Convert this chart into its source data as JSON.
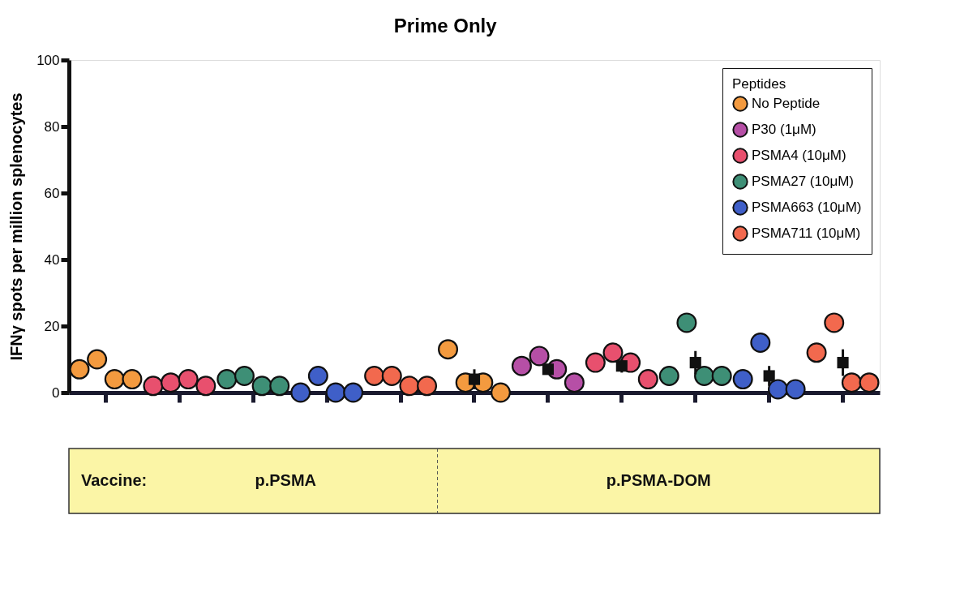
{
  "chart_data": {
    "type": "scatter",
    "title": "Prime Only",
    "ylabel": "IFNγ spots per million splenocytes",
    "legend_title": "Peptides",
    "legend": "top right",
    "grid": false,
    "marker": "circle",
    "tick_labels": "y",
    "categories": [
      null,
      null,
      null,
      null,
      null,
      null,
      null,
      null,
      null,
      null,
      null
    ],
    "ylim": [
      0,
      100
    ],
    "yticks": [
      0,
      20,
      40,
      60,
      80,
      100
    ],
    "series": [
      {
        "name": "No Peptide",
        "color": "#f39a3f",
        "values": [
          7,
          null,
          null,
          null,
          null,
          13,
          null,
          null,
          null,
          null,
          null
        ]
      },
      {
        "color": "#f39a3f",
        "values": [
          10,
          null,
          null,
          null,
          null,
          3,
          null,
          null,
          null,
          null,
          null
        ]
      },
      {
        "color": "#f39a3f",
        "values": [
          4,
          null,
          null,
          null,
          null,
          3,
          null,
          null,
          null,
          null,
          null
        ]
      },
      {
        "color": "#f39a3f",
        "values": [
          4,
          null,
          null,
          null,
          null,
          0,
          null,
          null,
          null,
          null,
          null
        ]
      },
      {
        "name": "P30 (1μM)",
        "color": "#b64fa6",
        "values": [
          null,
          null,
          null,
          null,
          null,
          null,
          8,
          null,
          null,
          null,
          null
        ]
      },
      {
        "color": "#b64fa6",
        "values": [
          null,
          null,
          null,
          null,
          null,
          null,
          11,
          null,
          null,
          null,
          null
        ]
      },
      {
        "color": "#b64fa6",
        "values": [
          null,
          null,
          null,
          null,
          null,
          null,
          7,
          null,
          null,
          null,
          null
        ]
      },
      {
        "color": "#b64fa6",
        "values": [
          null,
          null,
          null,
          null,
          null,
          null,
          3,
          null,
          null,
          null,
          null
        ]
      },
      {
        "name": "PSMA4 (10μM)",
        "color": "#e8506e",
        "values": [
          null,
          2,
          null,
          null,
          null,
          null,
          null,
          9,
          null,
          null,
          null
        ]
      },
      {
        "color": "#e8506e",
        "values": [
          null,
          3,
          null,
          null,
          null,
          null,
          null,
          12,
          null,
          null,
          null
        ]
      },
      {
        "color": "#e8506e",
        "values": [
          null,
          4,
          null,
          null,
          null,
          null,
          null,
          9,
          null,
          null,
          null
        ]
      },
      {
        "color": "#e8506e",
        "values": [
          null,
          2,
          null,
          null,
          null,
          null,
          null,
          4,
          null,
          null,
          null
        ]
      },
      {
        "name": "PSMA27 (10μM)",
        "color": "#3e8f76",
        "values": [
          null,
          null,
          4,
          null,
          null,
          null,
          null,
          null,
          5,
          null,
          null
        ]
      },
      {
        "color": "#3e8f76",
        "values": [
          null,
          null,
          5,
          null,
          null,
          null,
          null,
          null,
          21,
          null,
          null
        ]
      },
      {
        "color": "#3e8f76",
        "values": [
          null,
          null,
          2,
          null,
          null,
          null,
          null,
          null,
          5,
          null,
          null
        ]
      },
      {
        "color": "#3e8f76",
        "values": [
          null,
          null,
          2,
          null,
          null,
          null,
          null,
          null,
          5,
          null,
          null
        ]
      },
      {
        "name": "PSMA663 (10μM)",
        "color": "#3f5fc8",
        "values": [
          null,
          null,
          null,
          0,
          null,
          null,
          null,
          null,
          null,
          4,
          null
        ]
      },
      {
        "color": "#3f5fc8",
        "values": [
          null,
          null,
          null,
          5,
          null,
          null,
          null,
          null,
          null,
          15,
          null
        ]
      },
      {
        "color": "#3f5fc8",
        "values": [
          null,
          null,
          null,
          0,
          null,
          null,
          null,
          null,
          null,
          1,
          null
        ]
      },
      {
        "color": "#3f5fc8",
        "values": [
          null,
          null,
          null,
          0,
          null,
          null,
          null,
          null,
          null,
          1,
          null
        ]
      },
      {
        "name": "PSMA711 (10μM)",
        "color": "#f2694e",
        "values": [
          null,
          null,
          null,
          null,
          5,
          null,
          null,
          null,
          null,
          null,
          12
        ]
      },
      {
        "color": "#f2694e",
        "values": [
          null,
          null,
          null,
          null,
          5,
          null,
          null,
          null,
          null,
          null,
          21
        ]
      },
      {
        "color": "#f2694e",
        "values": [
          null,
          null,
          null,
          null,
          2,
          null,
          null,
          null,
          null,
          null,
          3
        ]
      },
      {
        "color": "#f2694e",
        "values": [
          null,
          null,
          null,
          null,
          2,
          null,
          null,
          null,
          null,
          null,
          3
        ]
      },
      {
        "type": "scatter",
        "marker": "square",
        "color": "#111111",
        "values": [
          null,
          null,
          null,
          null,
          null,
          4,
          7,
          8,
          9,
          5,
          9
        ],
        "errors": [
          null,
          null,
          null,
          null,
          null,
          3,
          1.5,
          2,
          3.5,
          3,
          4
        ]
      }
    ],
    "annotations": [
      "Vaccine:",
      "p.PSMA",
      "p.PSMA-DOM"
    ]
  }
}
